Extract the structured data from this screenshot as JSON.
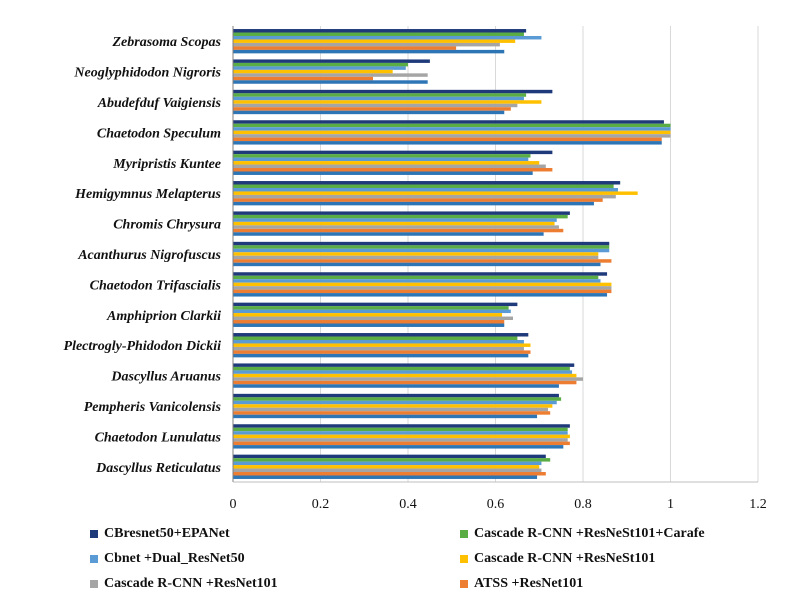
{
  "chart_data": {
    "type": "bar",
    "orientation": "horizontal",
    "title": "",
    "xlabel": "",
    "ylabel": "",
    "xlim": [
      0,
      1.2
    ],
    "xticks": [
      "0",
      "0.2",
      "0.4",
      "0.6",
      "0.8",
      "1",
      "1.2"
    ],
    "grid": "vertical",
    "legend_position": "bottom",
    "categories": [
      "Zebrasoma Scopas",
      "Neoglyphidodon Nigroris",
      "Abudefduf Vaigiensis",
      "Chaetodon Speculum",
      "Myripristis Kuntee",
      "Hemigymnus Melapterus",
      "Chromis Chrysura",
      "Acanthurus Nigrofuscus",
      "Chaetodon Trifascialis",
      "Amphiprion Clarkii",
      "Plectrogly-Phidodon Dickii",
      "Dascyllus Aruanus",
      "Pempheris Vanicolensis",
      "Chaetodon Lunulatus",
      "Dascyllus Reticulatus"
    ],
    "series": [
      {
        "name": "CBresnet50+EPANet",
        "color": "#1f3a7a",
        "values": [
          0.67,
          0.45,
          0.73,
          0.985,
          0.73,
          0.885,
          0.77,
          0.86,
          0.855,
          0.65,
          0.675,
          0.78,
          0.745,
          0.77,
          0.715
        ]
      },
      {
        "name": "Cascade R-CNN +ResNeSt101+Carafe",
        "color": "#5aac44",
        "values": [
          0.665,
          0.4,
          0.67,
          1.0,
          0.68,
          0.87,
          0.765,
          0.86,
          0.835,
          0.63,
          0.65,
          0.77,
          0.75,
          0.765,
          0.725
        ]
      },
      {
        "name": "Cbnet +Dual_ResNet50",
        "color": "#5b9bd5",
        "values": [
          0.705,
          0.395,
          0.665,
          1.0,
          0.675,
          0.88,
          0.74,
          0.86,
          0.84,
          0.635,
          0.665,
          0.775,
          0.74,
          0.765,
          0.705
        ]
      },
      {
        "name": "Cascade R-CNN +ResNeSt101",
        "color": "#ffc000",
        "values": [
          0.645,
          0.365,
          0.705,
          1.0,
          0.7,
          0.925,
          0.735,
          0.835,
          0.865,
          0.615,
          0.68,
          0.785,
          0.73,
          0.77,
          0.7
        ]
      },
      {
        "name": "Cascade R-CNN +ResNet101",
        "color": "#a5a5a5",
        "values": [
          0.61,
          0.445,
          0.65,
          1.0,
          0.715,
          0.875,
          0.745,
          0.835,
          0.865,
          0.64,
          0.665,
          0.8,
          0.72,
          0.765,
          0.705
        ]
      },
      {
        "name": "ATSS  +ResNet101",
        "color": "#ed7d31",
        "values": [
          0.51,
          0.32,
          0.635,
          0.98,
          0.73,
          0.845,
          0.755,
          0.865,
          0.865,
          0.62,
          0.68,
          0.785,
          0.725,
          0.77,
          0.715
        ]
      },
      {
        "name": "",
        "color": "#2e75b6",
        "values": [
          0.62,
          0.445,
          0.62,
          0.98,
          0.685,
          0.825,
          0.71,
          0.84,
          0.855,
          0.62,
          0.675,
          0.745,
          0.695,
          0.755,
          0.695
        ]
      }
    ]
  },
  "legend": {
    "items": [
      {
        "label": "CBresnet50+EPANet",
        "color": "#1f3a7a"
      },
      {
        "label": "Cascade R-CNN +ResNeSt101+Carafe",
        "color": "#5aac44"
      },
      {
        "label": "Cbnet +Dual_ResNet50",
        "color": "#5b9bd5"
      },
      {
        "label": "Cascade R-CNN +ResNeSt101",
        "color": "#ffc000"
      },
      {
        "label": "Cascade R-CNN +ResNet101",
        "color": "#a5a5a5"
      },
      {
        "label": "ATSS  +ResNet101",
        "color": "#ed7d31"
      }
    ]
  }
}
